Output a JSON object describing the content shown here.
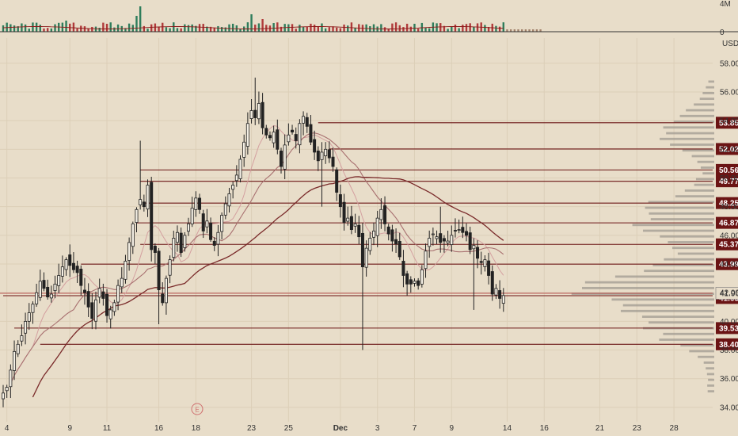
{
  "chart_data": {
    "type": "candlestick",
    "currency": "USD",
    "volume_axis": {
      "ticks": [
        "4M",
        "0"
      ],
      "max": 4000000
    },
    "price_axis": {
      "ticks": [
        34,
        36,
        38,
        40,
        42,
        44,
        46,
        48,
        50,
        52,
        54,
        56,
        58
      ],
      "tick_labels": [
        "34.00",
        "36.00",
        "38.00",
        "40.00",
        "42.00",
        "44.00",
        "46.00",
        "48.00",
        "50.00",
        "52.00",
        "54.00",
        "56.00",
        "58.00"
      ],
      "ylim": [
        33.0,
        60.2
      ]
    },
    "x_labels": [
      {
        "text": "4",
        "i": 1
      },
      {
        "text": "9",
        "i": 18
      },
      {
        "text": "11",
        "i": 28
      },
      {
        "text": "16",
        "i": 42
      },
      {
        "text": "18",
        "i": 52
      },
      {
        "text": "23",
        "i": 67
      },
      {
        "text": "25",
        "i": 77
      },
      {
        "text": "Dec",
        "i": 91,
        "bold": true
      },
      {
        "text": "3",
        "i": 101
      },
      {
        "text": "7",
        "i": 111
      },
      {
        "text": "9",
        "i": 121
      },
      {
        "text": "14",
        "i": 136
      },
      {
        "text": "16",
        "i": 146
      },
      {
        "text": "21",
        "i": 161
      },
      {
        "text": "23",
        "i": 171
      },
      {
        "text": "28",
        "i": 181
      }
    ],
    "levels": [
      {
        "price": 53.85,
        "label": "53.85",
        "start_i": 85
      },
      {
        "price": 52.02,
        "label": "52.02",
        "start_i": 88
      },
      {
        "price": 50.56,
        "label": "50.56",
        "start_i": 37
      },
      {
        "price": 49.77,
        "label": "49.77",
        "start_i": 37
      },
      {
        "price": 48.25,
        "label": "48.25",
        "start_i": 38
      },
      {
        "price": 46.87,
        "label": "46.87",
        "start_i": 36
      },
      {
        "price": 45.37,
        "label": "45.37",
        "start_i": 37
      },
      {
        "price": 43.99,
        "label": "43.99",
        "start_i": 21
      },
      {
        "price": 41.79,
        "label": "41.79",
        "start_i": 0
      },
      {
        "price": 41.63,
        "label": "41.63",
        "start_i": null
      },
      {
        "price": 39.53,
        "label": "39.53",
        "start_i": 3
      },
      {
        "price": 38.4,
        "label": "38.40",
        "start_i": 10
      }
    ],
    "current_price": {
      "price": 41.96,
      "label": "41.96"
    },
    "close": [
      35.0,
      35.4,
      36.6,
      37.9,
      38.4,
      39.0,
      40.0,
      40.6,
      41.2,
      42.0,
      42.8,
      42.3,
      41.7,
      41.9,
      42.6,
      43.2,
      43.8,
      44.3,
      43.9,
      43.6,
      43.4,
      42.5,
      42.0,
      41.0,
      40.2,
      41.5,
      42.3,
      41.6,
      40.4,
      40.8,
      41.3,
      42.5,
      43.0,
      44.2,
      45.5,
      46.8,
      47.8,
      48.5,
      48.0,
      49.5,
      45.0,
      44.8,
      42.2,
      41.3,
      43.0,
      44.3,
      45.8,
      46.2,
      44.8,
      46.0,
      46.8,
      47.9,
      48.6,
      47.8,
      46.3,
      47.0,
      45.7,
      45.3,
      46.2,
      47.4,
      48.2,
      48.9,
      49.5,
      50.2,
      51.3,
      52.5,
      53.8,
      54.7,
      54.2,
      55.2,
      53.5,
      53.0,
      52.8,
      53.2,
      52.0,
      50.8,
      52.3,
      53.0,
      53.2,
      52.6,
      53.8,
      54.3,
      53.6,
      52.5,
      51.8,
      51.2,
      51.8,
      52.0,
      51.4,
      50.8,
      49.0,
      48.0,
      46.9,
      47.2,
      46.4,
      46.8,
      45.9,
      43.8,
      45.1,
      45.8,
      46.3,
      47.2,
      47.8,
      46.8,
      46.1,
      45.6,
      45.4,
      44.5,
      43.2,
      42.6,
      42.6,
      42.8,
      42.5,
      43.6,
      44.9,
      45.8,
      46.1,
      45.9,
      45.5,
      45.6,
      45.6,
      46.0,
      46.3,
      46.4,
      46.2,
      46.0,
      45.0,
      45.3,
      44.4,
      44.1,
      44.3,
      43.2,
      41.9,
      42.3,
      41.6,
      41.8
    ]
  }
}
